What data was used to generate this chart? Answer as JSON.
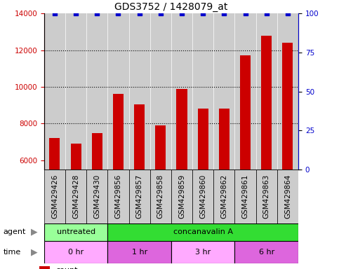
{
  "title": "GDS3752 / 1428079_at",
  "samples": [
    "GSM429426",
    "GSM429428",
    "GSM429430",
    "GSM429856",
    "GSM429857",
    "GSM429858",
    "GSM429859",
    "GSM429860",
    "GSM429862",
    "GSM429861",
    "GSM429863",
    "GSM429864"
  ],
  "counts": [
    7200,
    6900,
    7500,
    9600,
    9050,
    7900,
    9900,
    8800,
    8800,
    11700,
    12800,
    12400
  ],
  "percentile_ranks": [
    100,
    100,
    100,
    100,
    100,
    100,
    100,
    100,
    100,
    100,
    100,
    100
  ],
  "bar_color": "#cc0000",
  "dot_color": "#0000cc",
  "ylim_left": [
    5500,
    14000
  ],
  "ylim_right": [
    0,
    100
  ],
  "yticks_left": [
    6000,
    8000,
    10000,
    12000,
    14000
  ],
  "yticks_right": [
    0,
    25,
    50,
    75,
    100
  ],
  "agent_groups": [
    {
      "label": "untreated",
      "start": 0,
      "end": 3,
      "color": "#99ff99"
    },
    {
      "label": "concanavalin A",
      "start": 3,
      "end": 12,
      "color": "#33dd33"
    }
  ],
  "time_groups": [
    {
      "label": "0 hr",
      "start": 0,
      "end": 3,
      "color": "#ffaaff"
    },
    {
      "label": "1 hr",
      "start": 3,
      "end": 6,
      "color": "#dd66dd"
    },
    {
      "label": "3 hr",
      "start": 6,
      "end": 9,
      "color": "#ffaaff"
    },
    {
      "label": "6 hr",
      "start": 9,
      "end": 12,
      "color": "#dd66dd"
    }
  ],
  "bar_color_red": "#cc0000",
  "dot_color_blue": "#0000cc",
  "tick_label_fontsize": 7.5,
  "title_fontsize": 10,
  "annot_fontsize": 8,
  "col_bg_color": "#cccccc",
  "col_sep_color": "#aaaaaa"
}
